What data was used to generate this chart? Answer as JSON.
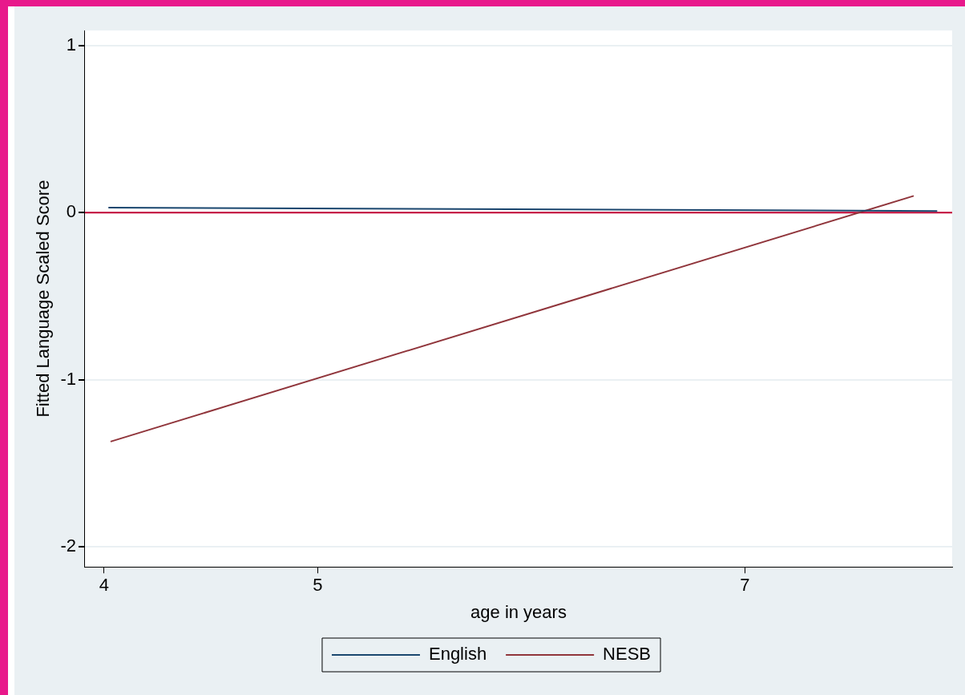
{
  "chart_data": {
    "type": "line",
    "xlabel": "age in years",
    "ylabel": "Fitted Language Scaled Score",
    "series": [
      {
        "name": "English",
        "color": "#1a476f",
        "x": [
          4.02,
          7.9
        ],
        "values": [
          0.03,
          0.01
        ]
      },
      {
        "name": "NESB",
        "color": "#90353b",
        "x": [
          4.03,
          7.79
        ],
        "values": [
          -1.37,
          0.1
        ]
      }
    ],
    "xlim": [
      3.91,
      7.97
    ],
    "xticks": [
      4,
      5,
      7
    ],
    "ylim": [
      -2.12,
      1.09
    ],
    "yticks": [
      -2,
      -1,
      0,
      1
    ],
    "ref_lines": [
      {
        "axis": "y",
        "value": 0,
        "color": "#c10534"
      }
    ],
    "grid": "y",
    "legend": "bottom",
    "marker": "none",
    "line_style": "solid"
  }
}
